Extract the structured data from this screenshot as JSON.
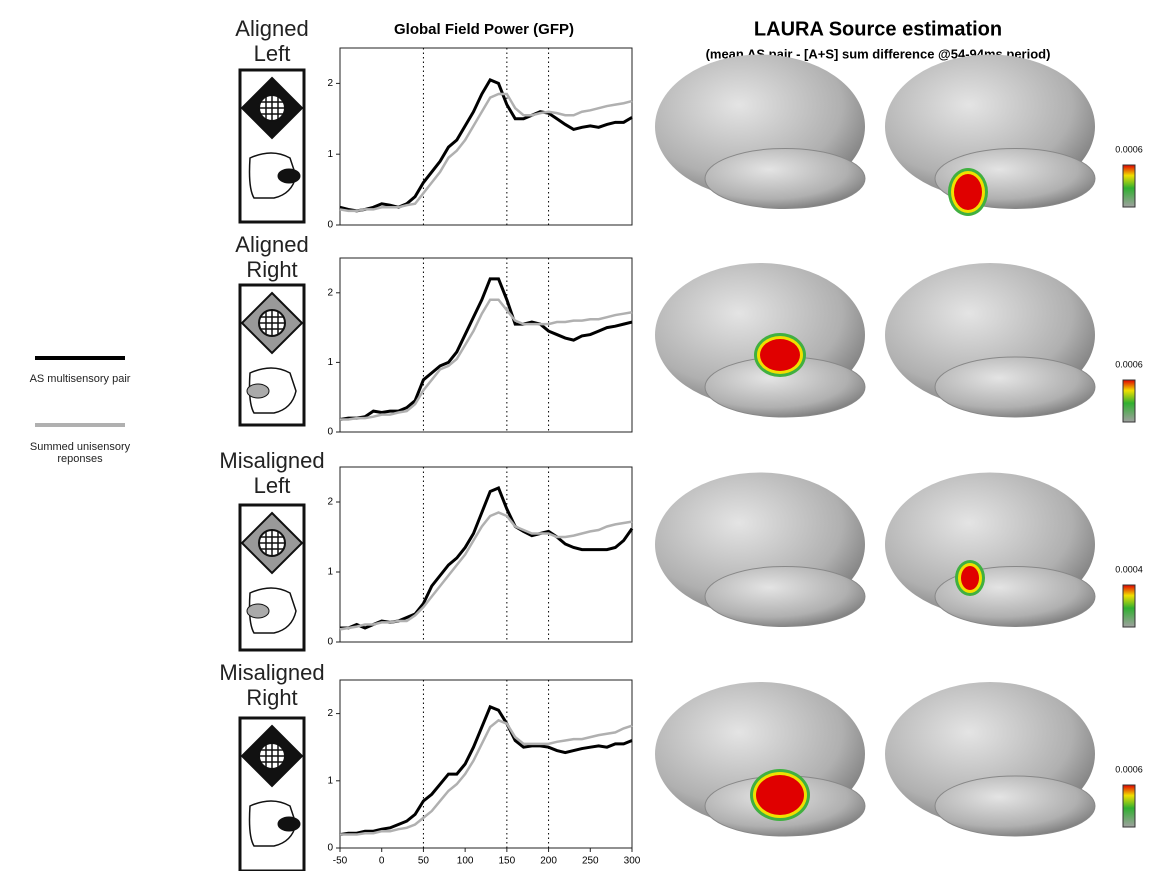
{
  "gfp_title": "Global Field Power (GFP)",
  "laura_title": "LAURA Source estimation",
  "laura_subtitle": "(mean AS pair - [A+S] sum difference @54-94ms period)",
  "source_maps": [
    {
      "colorbar_label": "0.0006"
    },
    {
      "colorbar_label": "0.0006"
    },
    {
      "colorbar_label": "0.0004"
    },
    {
      "colorbar_label": "0.0006"
    }
  ],
  "chart_data": [
    {
      "type": "line",
      "title": "Aligned Left",
      "x": [
        -50,
        -40,
        -30,
        -20,
        -10,
        0,
        10,
        20,
        30,
        40,
        50,
        60,
        70,
        80,
        90,
        100,
        110,
        120,
        130,
        140,
        150,
        160,
        170,
        180,
        190,
        200,
        210,
        220,
        230,
        240,
        250,
        260,
        270,
        280,
        290,
        300
      ],
      "series": [
        {
          "name": "AS multisensory pair",
          "color": "#000000",
          "values": [
            0.25,
            0.22,
            0.2,
            0.22,
            0.25,
            0.3,
            0.28,
            0.25,
            0.3,
            0.4,
            0.6,
            0.75,
            0.9,
            1.1,
            1.2,
            1.4,
            1.6,
            1.85,
            2.05,
            2.0,
            1.7,
            1.5,
            1.5,
            1.55,
            1.6,
            1.58,
            1.5,
            1.42,
            1.35,
            1.38,
            1.4,
            1.38,
            1.42,
            1.45,
            1.45,
            1.52
          ]
        },
        {
          "name": "Summed unisensory reponses",
          "color": "#b0b0b0",
          "values": [
            0.22,
            0.2,
            0.2,
            0.22,
            0.22,
            0.25,
            0.25,
            0.25,
            0.28,
            0.3,
            0.45,
            0.6,
            0.75,
            0.95,
            1.05,
            1.2,
            1.4,
            1.6,
            1.8,
            1.85,
            1.85,
            1.65,
            1.55,
            1.55,
            1.58,
            1.6,
            1.58,
            1.55,
            1.55,
            1.6,
            1.62,
            1.65,
            1.68,
            1.7,
            1.72,
            1.75
          ]
        }
      ],
      "xlim": [
        -50,
        300
      ],
      "ylim": [
        0,
        2.5
      ],
      "yticks": [
        0,
        1,
        2
      ],
      "reference_lines": [
        50,
        150,
        200
      ]
    },
    {
      "type": "line",
      "title": "Aligned Right",
      "x": [
        -50,
        -40,
        -30,
        -20,
        -10,
        0,
        10,
        20,
        30,
        40,
        50,
        60,
        70,
        80,
        90,
        100,
        110,
        120,
        130,
        140,
        150,
        160,
        170,
        180,
        190,
        200,
        210,
        220,
        230,
        240,
        250,
        260,
        270,
        280,
        290,
        300
      ],
      "series": [
        {
          "color": "#000000",
          "values": [
            0.18,
            0.2,
            0.2,
            0.22,
            0.3,
            0.28,
            0.3,
            0.3,
            0.35,
            0.45,
            0.75,
            0.85,
            0.95,
            1.0,
            1.15,
            1.4,
            1.65,
            1.9,
            2.2,
            2.2,
            1.9,
            1.55,
            1.55,
            1.58,
            1.55,
            1.45,
            1.4,
            1.35,
            1.32,
            1.38,
            1.4,
            1.45,
            1.5,
            1.52,
            1.55,
            1.58
          ]
        },
        {
          "color": "#b0b0b0",
          "values": [
            0.18,
            0.18,
            0.2,
            0.2,
            0.22,
            0.25,
            0.25,
            0.28,
            0.3,
            0.4,
            0.6,
            0.75,
            0.9,
            0.95,
            1.05,
            1.25,
            1.45,
            1.7,
            1.9,
            1.9,
            1.75,
            1.6,
            1.55,
            1.55,
            1.55,
            1.55,
            1.58,
            1.58,
            1.6,
            1.6,
            1.62,
            1.62,
            1.65,
            1.68,
            1.7,
            1.72
          ]
        }
      ],
      "xlim": [
        -50,
        300
      ],
      "ylim": [
        0,
        2.5
      ],
      "yticks": [
        0,
        1,
        2
      ],
      "reference_lines": [
        50,
        150,
        200
      ]
    },
    {
      "type": "line",
      "title": "Misaligned Left",
      "x": [
        -50,
        -40,
        -30,
        -20,
        -10,
        0,
        10,
        20,
        30,
        40,
        50,
        60,
        70,
        80,
        90,
        100,
        110,
        120,
        130,
        140,
        150,
        160,
        170,
        180,
        190,
        200,
        210,
        220,
        230,
        240,
        250,
        260,
        270,
        280,
        290,
        300
      ],
      "series": [
        {
          "color": "#000000",
          "values": [
            0.2,
            0.2,
            0.25,
            0.2,
            0.25,
            0.3,
            0.28,
            0.3,
            0.35,
            0.4,
            0.55,
            0.8,
            0.95,
            1.1,
            1.2,
            1.35,
            1.55,
            1.85,
            2.15,
            2.2,
            1.9,
            1.65,
            1.58,
            1.52,
            1.55,
            1.58,
            1.5,
            1.4,
            1.35,
            1.32,
            1.32,
            1.32,
            1.32,
            1.35,
            1.45,
            1.62
          ]
        },
        {
          "color": "#b0b0b0",
          "values": [
            0.18,
            0.2,
            0.22,
            0.25,
            0.25,
            0.28,
            0.28,
            0.3,
            0.3,
            0.38,
            0.5,
            0.65,
            0.8,
            0.95,
            1.1,
            1.25,
            1.45,
            1.65,
            1.8,
            1.85,
            1.8,
            1.65,
            1.6,
            1.55,
            1.55,
            1.55,
            1.5,
            1.5,
            1.52,
            1.55,
            1.58,
            1.6,
            1.65,
            1.68,
            1.7,
            1.72
          ]
        }
      ],
      "xlim": [
        -50,
        300
      ],
      "ylim": [
        0,
        2.5
      ],
      "yticks": [
        0,
        1,
        2
      ],
      "reference_lines": [
        50,
        150,
        200
      ]
    },
    {
      "type": "line",
      "title": "Misaligned Right",
      "x": [
        -50,
        -40,
        -30,
        -20,
        -10,
        0,
        10,
        20,
        30,
        40,
        50,
        60,
        70,
        80,
        90,
        100,
        110,
        120,
        130,
        140,
        150,
        160,
        170,
        180,
        190,
        200,
        210,
        220,
        230,
        240,
        250,
        260,
        270,
        280,
        290,
        300
      ],
      "series": [
        {
          "color": "#000000",
          "values": [
            0.2,
            0.22,
            0.22,
            0.25,
            0.25,
            0.28,
            0.3,
            0.35,
            0.4,
            0.5,
            0.7,
            0.8,
            0.95,
            1.1,
            1.1,
            1.25,
            1.5,
            1.8,
            2.1,
            2.05,
            1.85,
            1.6,
            1.5,
            1.52,
            1.52,
            1.5,
            1.45,
            1.42,
            1.45,
            1.48,
            1.5,
            1.52,
            1.5,
            1.55,
            1.55,
            1.6
          ]
        },
        {
          "color": "#b0b0b0",
          "values": [
            0.2,
            0.2,
            0.2,
            0.22,
            0.22,
            0.25,
            0.25,
            0.28,
            0.3,
            0.35,
            0.45,
            0.55,
            0.7,
            0.85,
            0.95,
            1.1,
            1.3,
            1.55,
            1.8,
            1.9,
            1.85,
            1.65,
            1.55,
            1.55,
            1.55,
            1.55,
            1.58,
            1.6,
            1.62,
            1.62,
            1.65,
            1.68,
            1.7,
            1.72,
            1.78,
            1.82
          ]
        }
      ],
      "xlim": [
        -50,
        300
      ],
      "ylim": [
        0,
        2.5
      ],
      "yticks": [
        0,
        1,
        2
      ],
      "xticks": [
        -50,
        0,
        50,
        100,
        150,
        200,
        250,
        300
      ],
      "reference_lines": [
        50,
        150,
        200
      ]
    }
  ]
}
